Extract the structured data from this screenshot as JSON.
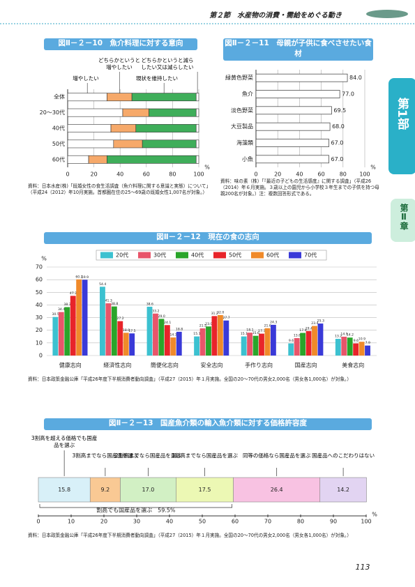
{
  "header": {
    "section": "第２節　水産物の消費・需給をめぐる動き"
  },
  "side_tabs": {
    "part": "第1部",
    "chapter": "第Ⅱ章"
  },
  "page_number": "113",
  "chart_data": [
    {
      "type": "stackedbar",
      "title": "図Ⅱ－２－10　魚介料理に対する意向",
      "categories": [
        "全体",
        "20～30代",
        "40代",
        "50代",
        "60代"
      ],
      "series": [
        {
          "name": "増やしたい",
          "color": "#ffffff",
          "values": [
            30,
            42,
            33,
            35,
            16
          ]
        },
        {
          "name": "どちらかというと増やしたい",
          "color": "#f6a96a",
          "values": [
            19,
            20,
            19,
            22,
            14
          ]
        },
        {
          "name": "現状を維持したい",
          "color": "#3fae5a",
          "values": [
            49,
            36,
            46,
            41,
            68
          ]
        },
        {
          "name": "どちらかというと減らしたい又は減らしたい",
          "color": "#ffffff",
          "values": [
            2,
            2,
            2,
            2,
            2
          ]
        }
      ],
      "xlim": [
        0,
        100
      ],
      "xticks": [
        0,
        20,
        40,
        60,
        80,
        100
      ],
      "unit": "%",
      "grid": true,
      "note": "資料：日本水産(株)「既婚女性の食生活調査（魚介料理に関する意識と実態）について」（平成24（2012）年10月実施。首都圏在住の25～69歳の既婚女性1,007名が対象。）"
    },
    {
      "type": "hbar",
      "title": "図Ⅱ－２－11　母親が子供に食べさせたい食材",
      "categories": [
        "緑黄色野菜",
        "魚介",
        "淡色野菜",
        "大豆製品",
        "海藻類",
        "小魚"
      ],
      "values": [
        84,
        77,
        69.5,
        68,
        67,
        67
      ],
      "value_labels": [
        "84.0",
        "77.0",
        "69.5",
        "68.0",
        "67.0",
        "67.0"
      ],
      "color": "#ffffff",
      "xlim": [
        0,
        100
      ],
      "xticks": [
        0,
        20,
        40,
        60,
        80,
        100
      ],
      "unit": "%",
      "grid": true,
      "note": "資料：味の素（株）「『最近の子どもの生活感度』に関する調査」（平成26（2014）年６月実施。３歳以上の園児から小学校３年生までの子供を持つ母親200名が対象。）注：複数回答形式である。"
    },
    {
      "type": "groupedbar",
      "title": "図Ⅱ－２－12　現在の食の志向",
      "categories": [
        "健康志向",
        "経済性志向",
        "簡便化志向",
        "安全志向",
        "手作り志向",
        "国産志向",
        "美食志向"
      ],
      "series": [
        {
          "name": "20代",
          "color": "#3cc1d0",
          "values": [
            30.5,
            54.4,
            38.6,
            15.1,
            15.1,
            9.6,
            13.2
          ],
          "value_labels": [
            "30.5",
            "54.4",
            "38.6",
            "15.1",
            "15.1",
            "9.6",
            "13.2"
          ]
        },
        {
          "name": "30代",
          "color": "#e8556a",
          "values": [
            34.4,
            41.3,
            33.2,
            21.5,
            18.1,
            13.8,
            14.9
          ],
          "value_labels": [
            "34.4",
            "41.3",
            "33.2",
            "21.5",
            "18.1",
            "13.8",
            "14.9"
          ]
        },
        {
          "name": "40代",
          "color": "#2aa52a",
          "values": [
            38.3,
            38.8,
            29,
            23,
            15.6,
            17.9,
            14.2
          ],
          "value_labels": [
            "38.3",
            "38.8",
            "29.0",
            "23.0",
            "15.6",
            "17.9",
            "14.2"
          ]
        },
        {
          "name": "50代",
          "color": "#e8242a",
          "values": [
            47.2,
            27.2,
            24.1,
            31.2,
            17.3,
            19.4,
            9.6
          ],
          "value_labels": [
            "47.2",
            "27.2",
            "24.1",
            "31.2",
            "17.3",
            "19.4",
            "9.6"
          ]
        },
        {
          "name": "60代",
          "color": "#f08a2a",
          "values": [
            60.2,
            18,
            14.3,
            32,
            21.6,
            23.4,
            10.9
          ],
          "value_labels": [
            "60.2",
            "18.0",
            "14.3",
            "32.0",
            "21.6",
            "23.4",
            "10.9"
          ]
        },
        {
          "name": "70代",
          "color": "#3a3ad8",
          "values": [
            59.9,
            17.5,
            18.8,
            27.7,
            24.3,
            25.3,
            7.9
          ],
          "value_labels": [
            "59.9",
            "17.5",
            "18.8",
            "27.7",
            "24.3",
            "25.3",
            "7.9"
          ]
        }
      ],
      "ylim": [
        0,
        70
      ],
      "yticks": [
        0,
        10,
        20,
        30,
        40,
        50,
        60,
        70
      ],
      "unit": "%",
      "grid": true,
      "legend": "top",
      "note": "資料：日本政策金融公庫「平成26年度下半期消費者動向調査」（平成27（2015）年１月実施。全国の20～70代の男女2,000名（男女各1,000名）が対象。）"
    },
    {
      "type": "stackedbar",
      "title": "図Ⅱ－２－13　国産魚介類の輸入魚介類に対する価格許容度",
      "categories": [
        null
      ],
      "series": [
        {
          "name": "3割高を超える価格でも国産品を選ぶ",
          "color": "#d8f0f8",
          "values": [
            15.8
          ],
          "value_labels": [
            "15.8"
          ]
        },
        {
          "name": "3割高までなら国産品を選ぶ",
          "color": "#f9c994",
          "values": [
            9.2
          ],
          "value_labels": [
            "9.2"
          ]
        },
        {
          "name": "2割高までなら国産品を選ぶ",
          "color": "#d2f0c4",
          "values": [
            17
          ],
          "value_labels": [
            "17.0"
          ]
        },
        {
          "name": "1割高までなら国産品を選ぶ",
          "color": "#ecf8b4",
          "values": [
            17.5
          ],
          "value_labels": [
            "17.5"
          ]
        },
        {
          "name": "同等の価格なら国産品を選ぶ",
          "color": "#f8c2e2",
          "values": [
            26.4
          ],
          "value_labels": [
            "26.4"
          ]
        },
        {
          "name": "国産品へのこだわりはない",
          "color": "#e2d4f2",
          "values": [
            14.2
          ],
          "value_labels": [
            "14.2"
          ]
        }
      ],
      "annotation": "割高でも国産品を選ぶ　59.5%",
      "xlim": [
        0,
        100
      ],
      "xticks": [
        0,
        10,
        20,
        30,
        40,
        50,
        60,
        70,
        80,
        90,
        100
      ],
      "unit": "%",
      "grid": false,
      "note": "資料：日本政策金融公庫「平成26年度下半期消費者動向調査」（平成27（2015）年１月実施。全国の20～70代の男女2,000名（男女各1,000名）が対象。）"
    }
  ]
}
